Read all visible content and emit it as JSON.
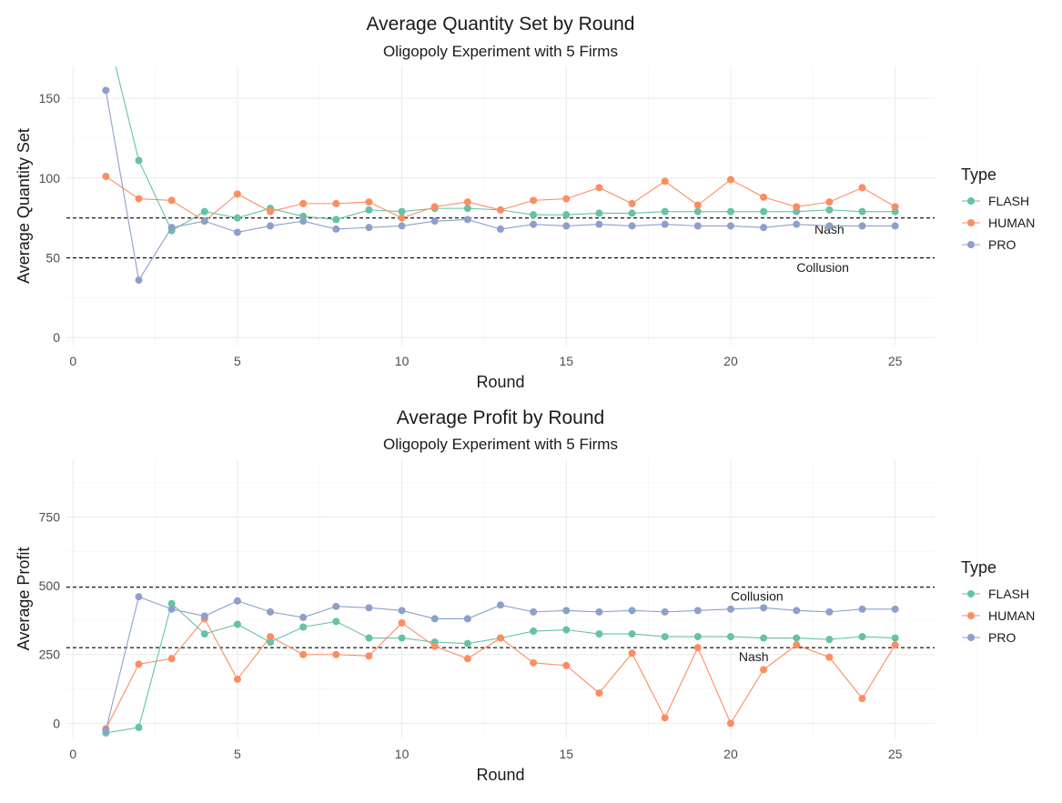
{
  "chart_data": [
    {
      "type": "line",
      "title": "Average Quantity Set by Round",
      "subtitle": "Oligopoly Experiment with 5 Firms",
      "xlabel": "Round",
      "ylabel": "Average Quantity Set",
      "xlim": [
        -0.2,
        26.2
      ],
      "ylim": [
        -5,
        170
      ],
      "x_ticks": [
        0,
        5,
        10,
        15,
        20,
        25
      ],
      "y_ticks": [
        0,
        50,
        100,
        150
      ],
      "grid": true,
      "legend": {
        "title": "Type",
        "position": "right"
      },
      "x": [
        1,
        2,
        3,
        4,
        5,
        6,
        7,
        8,
        9,
        10,
        11,
        12,
        13,
        14,
        15,
        16,
        17,
        18,
        19,
        20,
        21,
        22,
        23,
        24,
        25
      ],
      "series": [
        {
          "name": "FLASH",
          "color": "#66c2a5",
          "values": [
            195,
            111,
            67,
            79,
            75,
            81,
            76,
            74,
            80,
            79,
            81,
            81,
            80,
            77,
            77,
            78,
            78,
            79,
            79,
            79,
            79,
            79,
            80,
            79,
            79
          ]
        },
        {
          "name": "HUMAN",
          "color": "#fc8d62",
          "values": [
            101,
            87,
            86,
            73,
            90,
            79,
            84,
            84,
            85,
            75,
            82,
            85,
            80,
            86,
            87,
            94,
            84,
            98,
            83,
            99,
            88,
            82,
            85,
            94,
            82
          ]
        },
        {
          "name": "PRO",
          "color": "#8da0cb",
          "values": [
            155,
            36,
            69,
            73,
            66,
            70,
            73,
            68,
            69,
            70,
            73,
            74,
            68,
            71,
            70,
            71,
            70,
            71,
            70,
            70,
            69,
            71,
            70,
            70,
            70
          ]
        }
      ],
      "reference_lines": [
        {
          "label": "Nash",
          "y": 75,
          "label_x": 23.0,
          "label_y": 68
        },
        {
          "label": "Collusion",
          "y": 50,
          "label_x": 22.8,
          "label_y": 44
        }
      ]
    },
    {
      "type": "line",
      "title": "Average Profit by Round",
      "subtitle": "Oligopoly Experiment with 5 Firms",
      "xlabel": "Round",
      "ylabel": "Average Profit",
      "xlim": [
        -0.2,
        26.2
      ],
      "ylim": [
        -55,
        960
      ],
      "x_ticks": [
        0,
        5,
        10,
        15,
        20,
        25
      ],
      "y_ticks": [
        0,
        250,
        500,
        750
      ],
      "grid": true,
      "legend": {
        "title": "Type",
        "position": "right"
      },
      "x": [
        1,
        2,
        3,
        4,
        5,
        6,
        7,
        8,
        9,
        10,
        11,
        12,
        13,
        14,
        15,
        16,
        17,
        18,
        19,
        20,
        21,
        22,
        23,
        24,
        25
      ],
      "series": [
        {
          "name": "FLASH",
          "color": "#66c2a5",
          "values": [
            -35,
            -15,
            435,
            325,
            360,
            295,
            350,
            370,
            310,
            310,
            295,
            290,
            310,
            335,
            340,
            325,
            325,
            315,
            315,
            315,
            310,
            310,
            305,
            315,
            310
          ]
        },
        {
          "name": "HUMAN",
          "color": "#fc8d62",
          "values": [
            -20,
            215,
            235,
            380,
            160,
            315,
            250,
            250,
            245,
            365,
            280,
            235,
            310,
            220,
            210,
            110,
            255,
            20,
            275,
            0,
            195,
            285,
            240,
            90,
            285
          ]
        },
        {
          "name": "PRO",
          "color": "#8da0cb",
          "values": [
            -25,
            460,
            415,
            390,
            445,
            405,
            385,
            425,
            420,
            410,
            380,
            380,
            430,
            405,
            410,
            405,
            410,
            405,
            410,
            415,
            420,
            410,
            405,
            415,
            415
          ]
        }
      ],
      "reference_lines": [
        {
          "label": "Collusion",
          "y": 495,
          "label_x": 20.8,
          "label_y": 462
        },
        {
          "label": "Nash",
          "y": 275,
          "label_x": 20.7,
          "label_y": 242
        }
      ]
    }
  ]
}
